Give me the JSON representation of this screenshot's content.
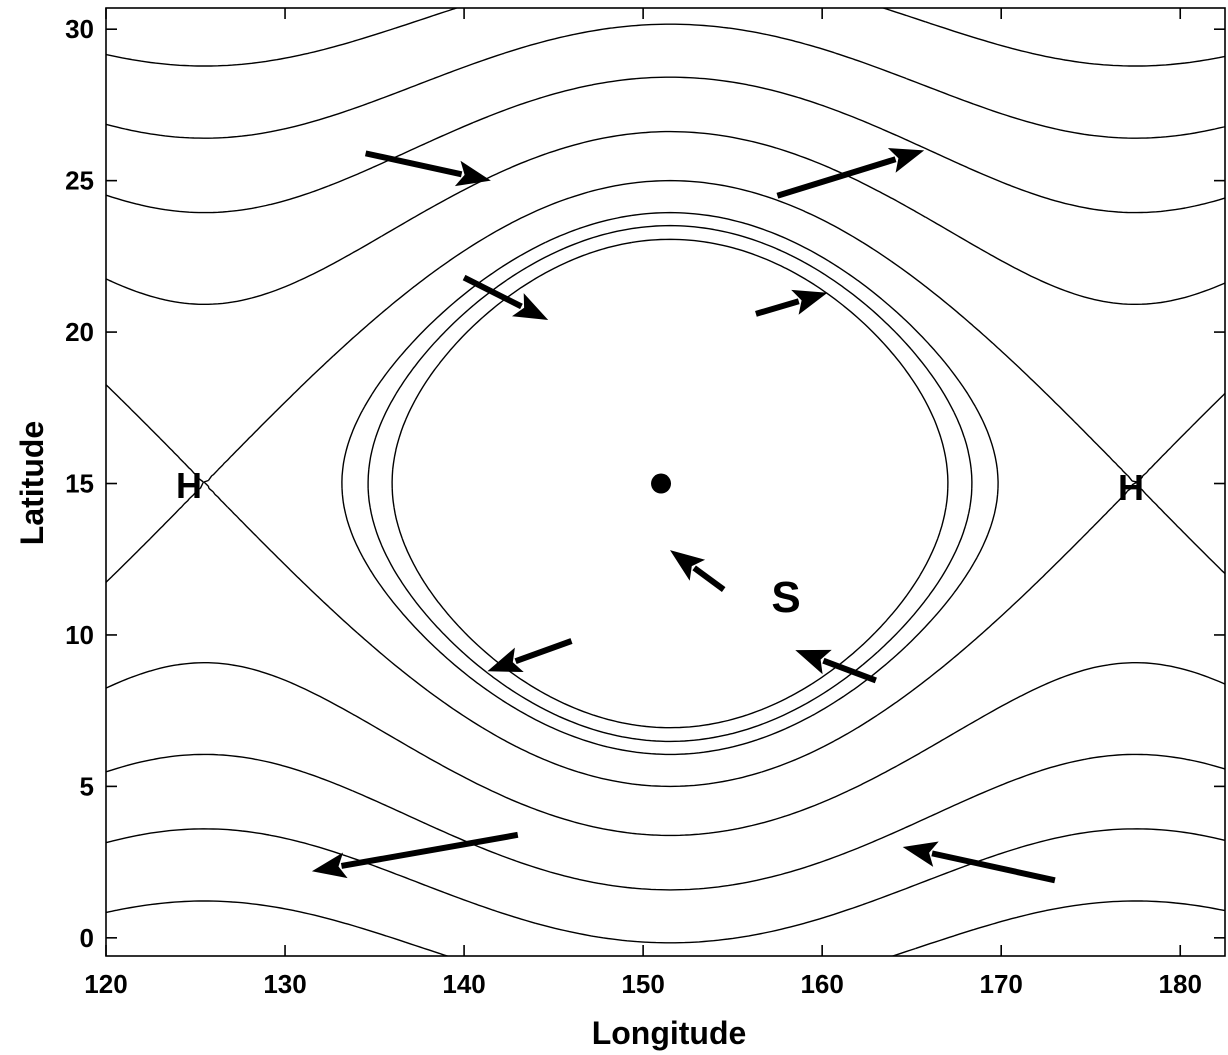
{
  "axes": {
    "xlabel": "Longitude",
    "ylabel": "Latitude",
    "xlim": [
      120,
      182.5
    ],
    "ylim": [
      -0.6,
      30.7
    ],
    "xticks": [
      120,
      130,
      140,
      150,
      160,
      170,
      180
    ],
    "yticks": [
      0,
      5,
      10,
      15,
      20,
      25,
      30
    ],
    "xtick_labels": [
      "120",
      "130",
      "140",
      "150",
      "160",
      "170",
      "180"
    ],
    "ytick_labels": [
      "0",
      "5",
      "10",
      "15",
      "20",
      "25",
      "30"
    ]
  },
  "saddle": {
    "center_lon": 151.5,
    "center_lat": 15,
    "lon_period": 52,
    "high_centers_lon": [
      125.5,
      177.5
    ],
    "contour_levels": [
      -0.7,
      -0.55,
      -0.4,
      0,
      0.7,
      1.6,
      2.6,
      3.8,
      5.1,
      6.5,
      8.0,
      9.6,
      11.4,
      13.3,
      15.3,
      17.4,
      19.6,
      21.9,
      24.2,
      26.6,
      29.0,
      31.6
    ]
  },
  "labels": {
    "high_left": "H",
    "high_right": "H",
    "saddle_point": "S"
  },
  "marker": {
    "lon": 151,
    "lat": 15
  },
  "arrows": [
    {
      "from": [
        134.5,
        25.9
      ],
      "to": [
        141.5,
        25.0
      ]
    },
    {
      "from": [
        157.5,
        24.5
      ],
      "to": [
        165.7,
        26.0
      ]
    },
    {
      "from": [
        140.0,
        21.8
      ],
      "to": [
        144.7,
        20.4
      ]
    },
    {
      "from": [
        156.3,
        20.6
      ],
      "to": [
        160.3,
        21.3
      ]
    },
    {
      "from": [
        154.5,
        11.5
      ],
      "to": [
        151.5,
        12.8
      ]
    },
    {
      "from": [
        146.0,
        9.8
      ],
      "to": [
        141.3,
        8.8
      ]
    },
    {
      "from": [
        163.0,
        8.5
      ],
      "to": [
        158.5,
        9.5
      ]
    },
    {
      "from": [
        143.0,
        3.4
      ],
      "to": [
        131.5,
        2.2
      ]
    },
    {
      "from": [
        173.0,
        1.9
      ],
      "to": [
        164.5,
        3.0
      ]
    }
  ]
}
